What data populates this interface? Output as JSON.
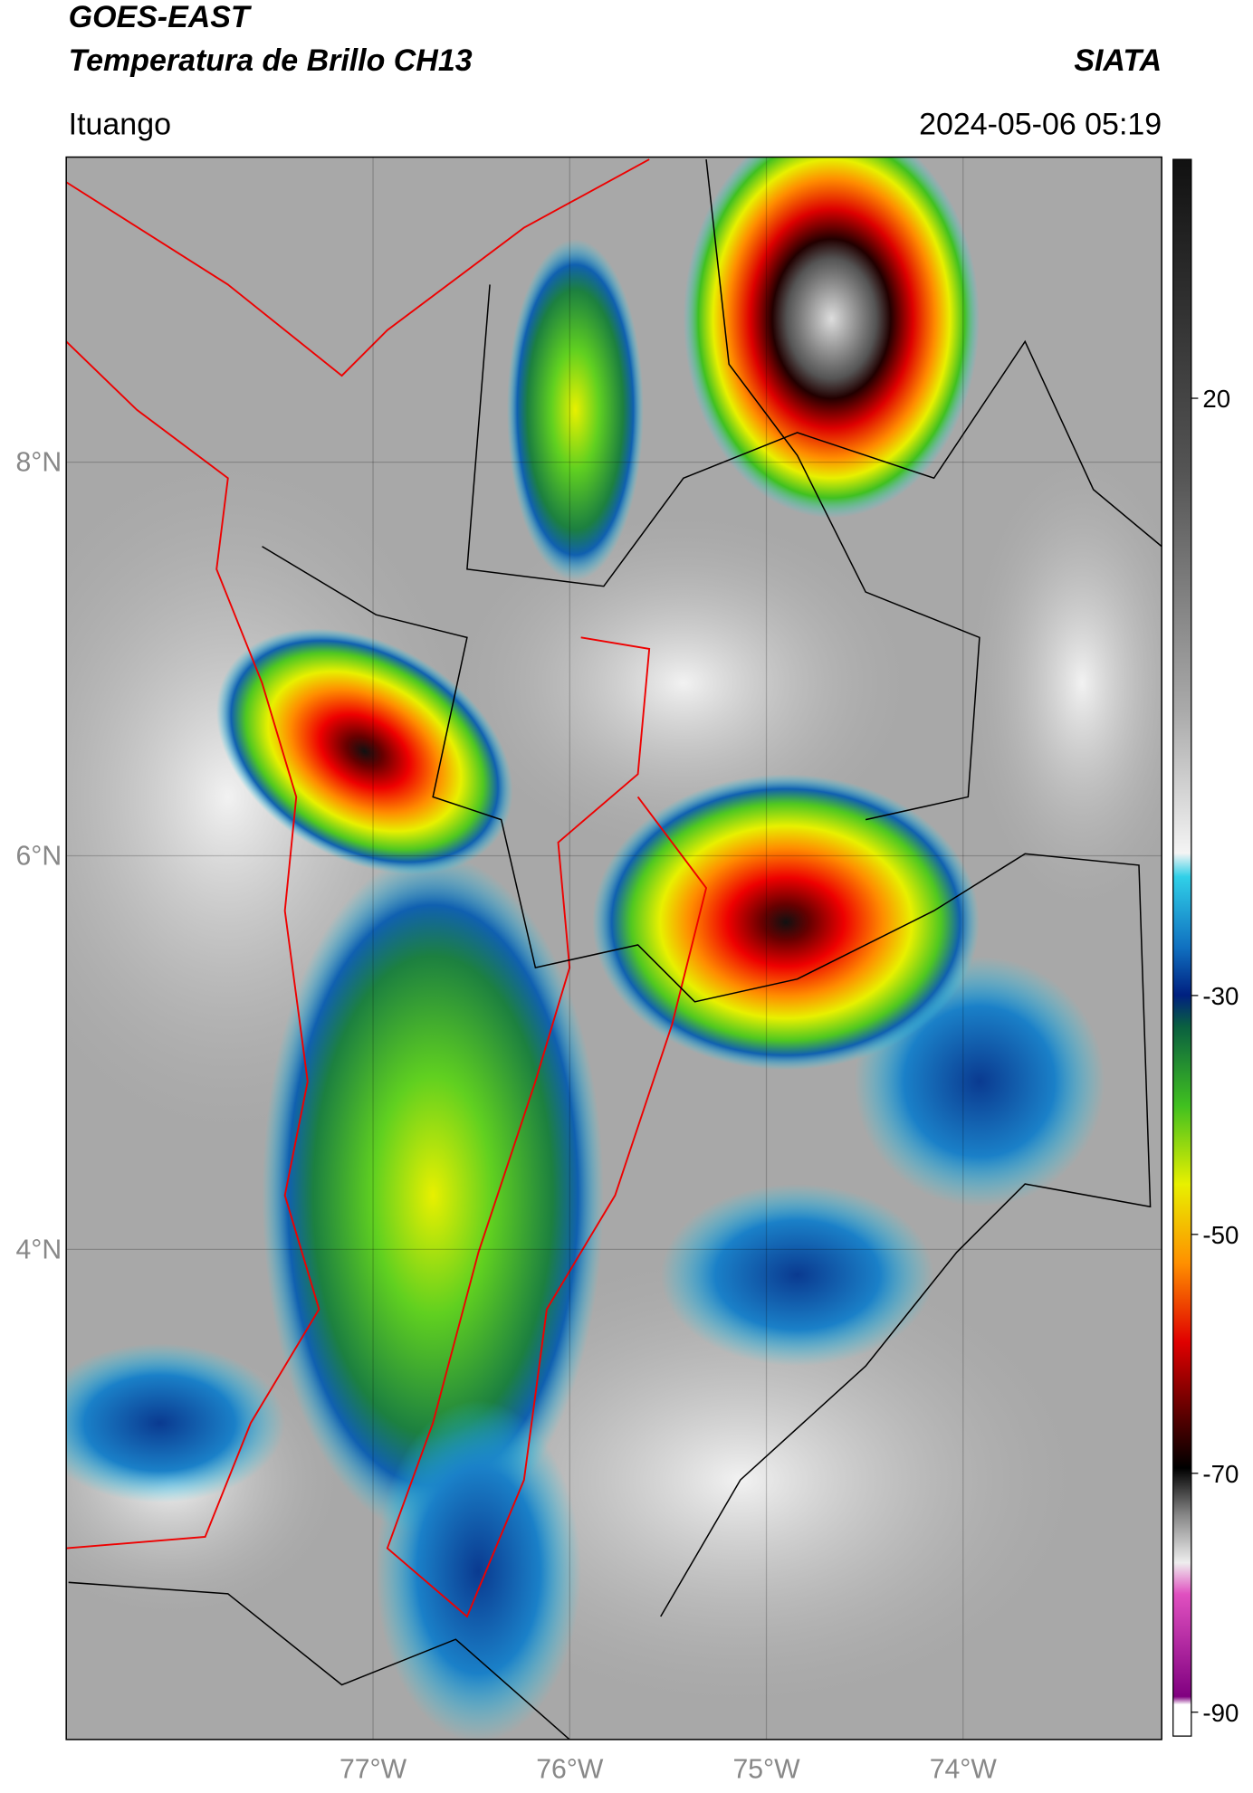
{
  "header": {
    "title_line1": "GOES-EAST",
    "title_line2": "Temperatura de Brillo CH13",
    "source": "SIATA",
    "location": "Ituango",
    "datetime": "2024-05-06 05:19"
  },
  "map": {
    "xlim": [
      -78.56,
      -72.99
    ],
    "ylim": [
      1.51,
      9.55
    ],
    "grid": true,
    "xticks": [
      {
        "value": -77,
        "label": "77°W"
      },
      {
        "value": -76,
        "label": "76°W"
      },
      {
        "value": -75,
        "label": "75°W"
      },
      {
        "value": -74,
        "label": "74°W"
      }
    ],
    "yticks": [
      {
        "value": 8,
        "label": "8°N"
      },
      {
        "value": 6,
        "label": "6°N"
      },
      {
        "value": 4,
        "label": "4°N"
      }
    ]
  },
  "colorbar": {
    "lim": [
      -92,
      40
    ],
    "ticks": [
      20,
      -30,
      -50,
      -70,
      -90
    ]
  }
}
